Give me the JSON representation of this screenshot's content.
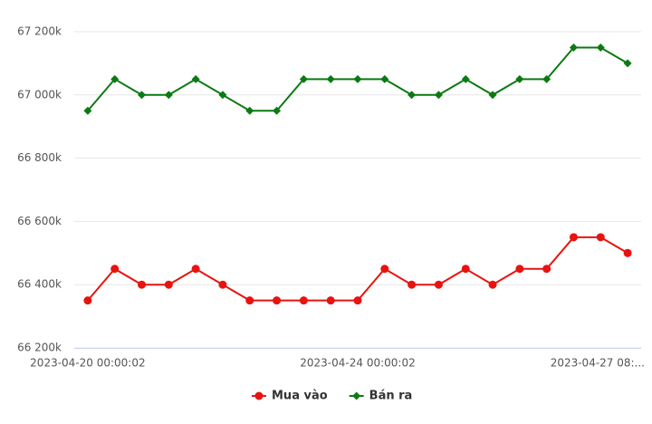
{
  "chart_data": {
    "type": "line",
    "categories": [
      "2023-04-20 00:00:02",
      null,
      null,
      null,
      null,
      null,
      null,
      null,
      null,
      null,
      "2023-04-24 00:00:02",
      null,
      null,
      null,
      null,
      null,
      null,
      null,
      null,
      "2023-04-27 08:...",
      null
    ],
    "series": [
      {
        "name": "Mua vào",
        "color": "#e8130f",
        "marker": "circle",
        "values": [
          66350000,
          66450000,
          66400000,
          66400000,
          66450000,
          66400000,
          66350000,
          66350000,
          66350000,
          66350000,
          66350000,
          66450000,
          66400000,
          66400000,
          66450000,
          66400000,
          66450000,
          66450000,
          66550000,
          66550000,
          66500000
        ]
      },
      {
        "name": "Bán ra",
        "color": "#0b7a12",
        "marker": "diamond",
        "values": [
          66950000,
          67050000,
          67000000,
          67000000,
          67050000,
          67000000,
          66950000,
          66950000,
          67050000,
          67050000,
          67050000,
          67050000,
          67000000,
          67000000,
          67050000,
          67000000,
          67050000,
          67050000,
          67150000,
          67150000,
          67100000
        ]
      }
    ],
    "ylim": [
      66200000,
      67200000
    ],
    "yticks": [
      {
        "value": 66200000,
        "label": "66 200k"
      },
      {
        "value": 66400000,
        "label": "66 400k"
      },
      {
        "value": 66600000,
        "label": "66 600k"
      },
      {
        "value": 66800000,
        "label": "66 800k"
      },
      {
        "value": 67000000,
        "label": "67 000k"
      },
      {
        "value": 67200000,
        "label": "67 200k"
      }
    ],
    "grid": true,
    "legend": "bottom"
  }
}
